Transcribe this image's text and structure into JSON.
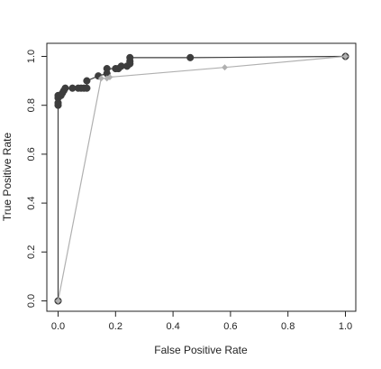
{
  "chart_data": {
    "type": "line",
    "xlabel": "False Positive Rate",
    "ylabel": "True Positive Rate",
    "xlim": [
      0,
      1
    ],
    "ylim": [
      0,
      1
    ],
    "x_ticks": [
      "0.0",
      "0.2",
      "0.4",
      "0.6",
      "0.8",
      "1.0"
    ],
    "y_ticks": [
      "0.0",
      "0.2",
      "0.4",
      "0.6",
      "0.8",
      "1.0"
    ],
    "grid": false,
    "legend": false,
    "series": [
      {
        "color": "#3d3d3d",
        "marker": "filled-circle-large",
        "points": [
          [
            0.0,
            0.0
          ],
          [
            0.0,
            0.8
          ],
          [
            0.0,
            0.81
          ],
          [
            0.0,
            0.83
          ],
          [
            0.0,
            0.84
          ],
          [
            0.01,
            0.84
          ],
          [
            0.015,
            0.85
          ],
          [
            0.02,
            0.86
          ],
          [
            0.025,
            0.87
          ],
          [
            0.05,
            0.87
          ],
          [
            0.07,
            0.87
          ],
          [
            0.08,
            0.87
          ],
          [
            0.09,
            0.87
          ],
          [
            0.1,
            0.87
          ],
          [
            0.1,
            0.9
          ],
          [
            0.14,
            0.92
          ],
          [
            0.17,
            0.93
          ],
          [
            0.17,
            0.95
          ],
          [
            0.2,
            0.95
          ],
          [
            0.21,
            0.95
          ],
          [
            0.22,
            0.96
          ],
          [
            0.24,
            0.96
          ],
          [
            0.25,
            0.97
          ],
          [
            0.25,
            0.98
          ],
          [
            0.25,
            0.995
          ],
          [
            0.46,
            0.995
          ],
          [
            1.0,
            1.0
          ]
        ]
      },
      {
        "color": "#b0b0b0",
        "marker": "filled-diamond-small",
        "points": [
          [
            0.0,
            0.0
          ],
          [
            0.15,
            0.91
          ],
          [
            0.17,
            0.91
          ],
          [
            0.18,
            0.915
          ],
          [
            0.58,
            0.955
          ],
          [
            1.0,
            1.0
          ]
        ]
      }
    ]
  }
}
